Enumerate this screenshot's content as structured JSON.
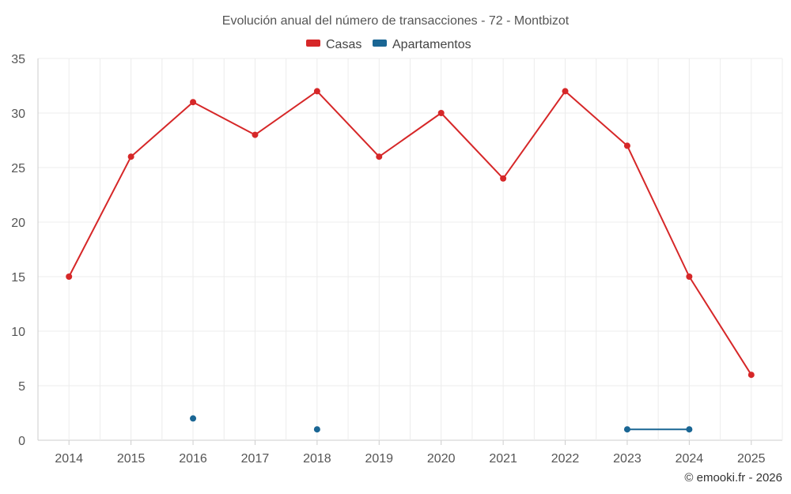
{
  "chart_data": {
    "type": "line",
    "title": "Evolución anual del número de transacciones - 72 - Montbizot",
    "categories": [
      "2014",
      "2015",
      "2016",
      "2017",
      "2018",
      "2019",
      "2020",
      "2021",
      "2022",
      "2023",
      "2024",
      "2025"
    ],
    "ylim": [
      0,
      35
    ],
    "yticks": [
      0,
      5,
      10,
      15,
      20,
      25,
      30,
      35
    ],
    "xlabel": "",
    "ylabel": "",
    "grid": true,
    "legend_position": "top-center",
    "series": [
      {
        "name": "Casas",
        "color": "#d62728",
        "values": [
          15,
          26,
          31,
          28,
          32,
          26,
          30,
          24,
          32,
          27,
          15,
          6
        ]
      },
      {
        "name": "Apartamentos",
        "color": "#1a6694",
        "values": [
          null,
          null,
          2,
          null,
          1,
          null,
          null,
          null,
          null,
          1,
          1,
          null
        ]
      }
    ]
  },
  "credit": "© emooki.fr - 2026"
}
